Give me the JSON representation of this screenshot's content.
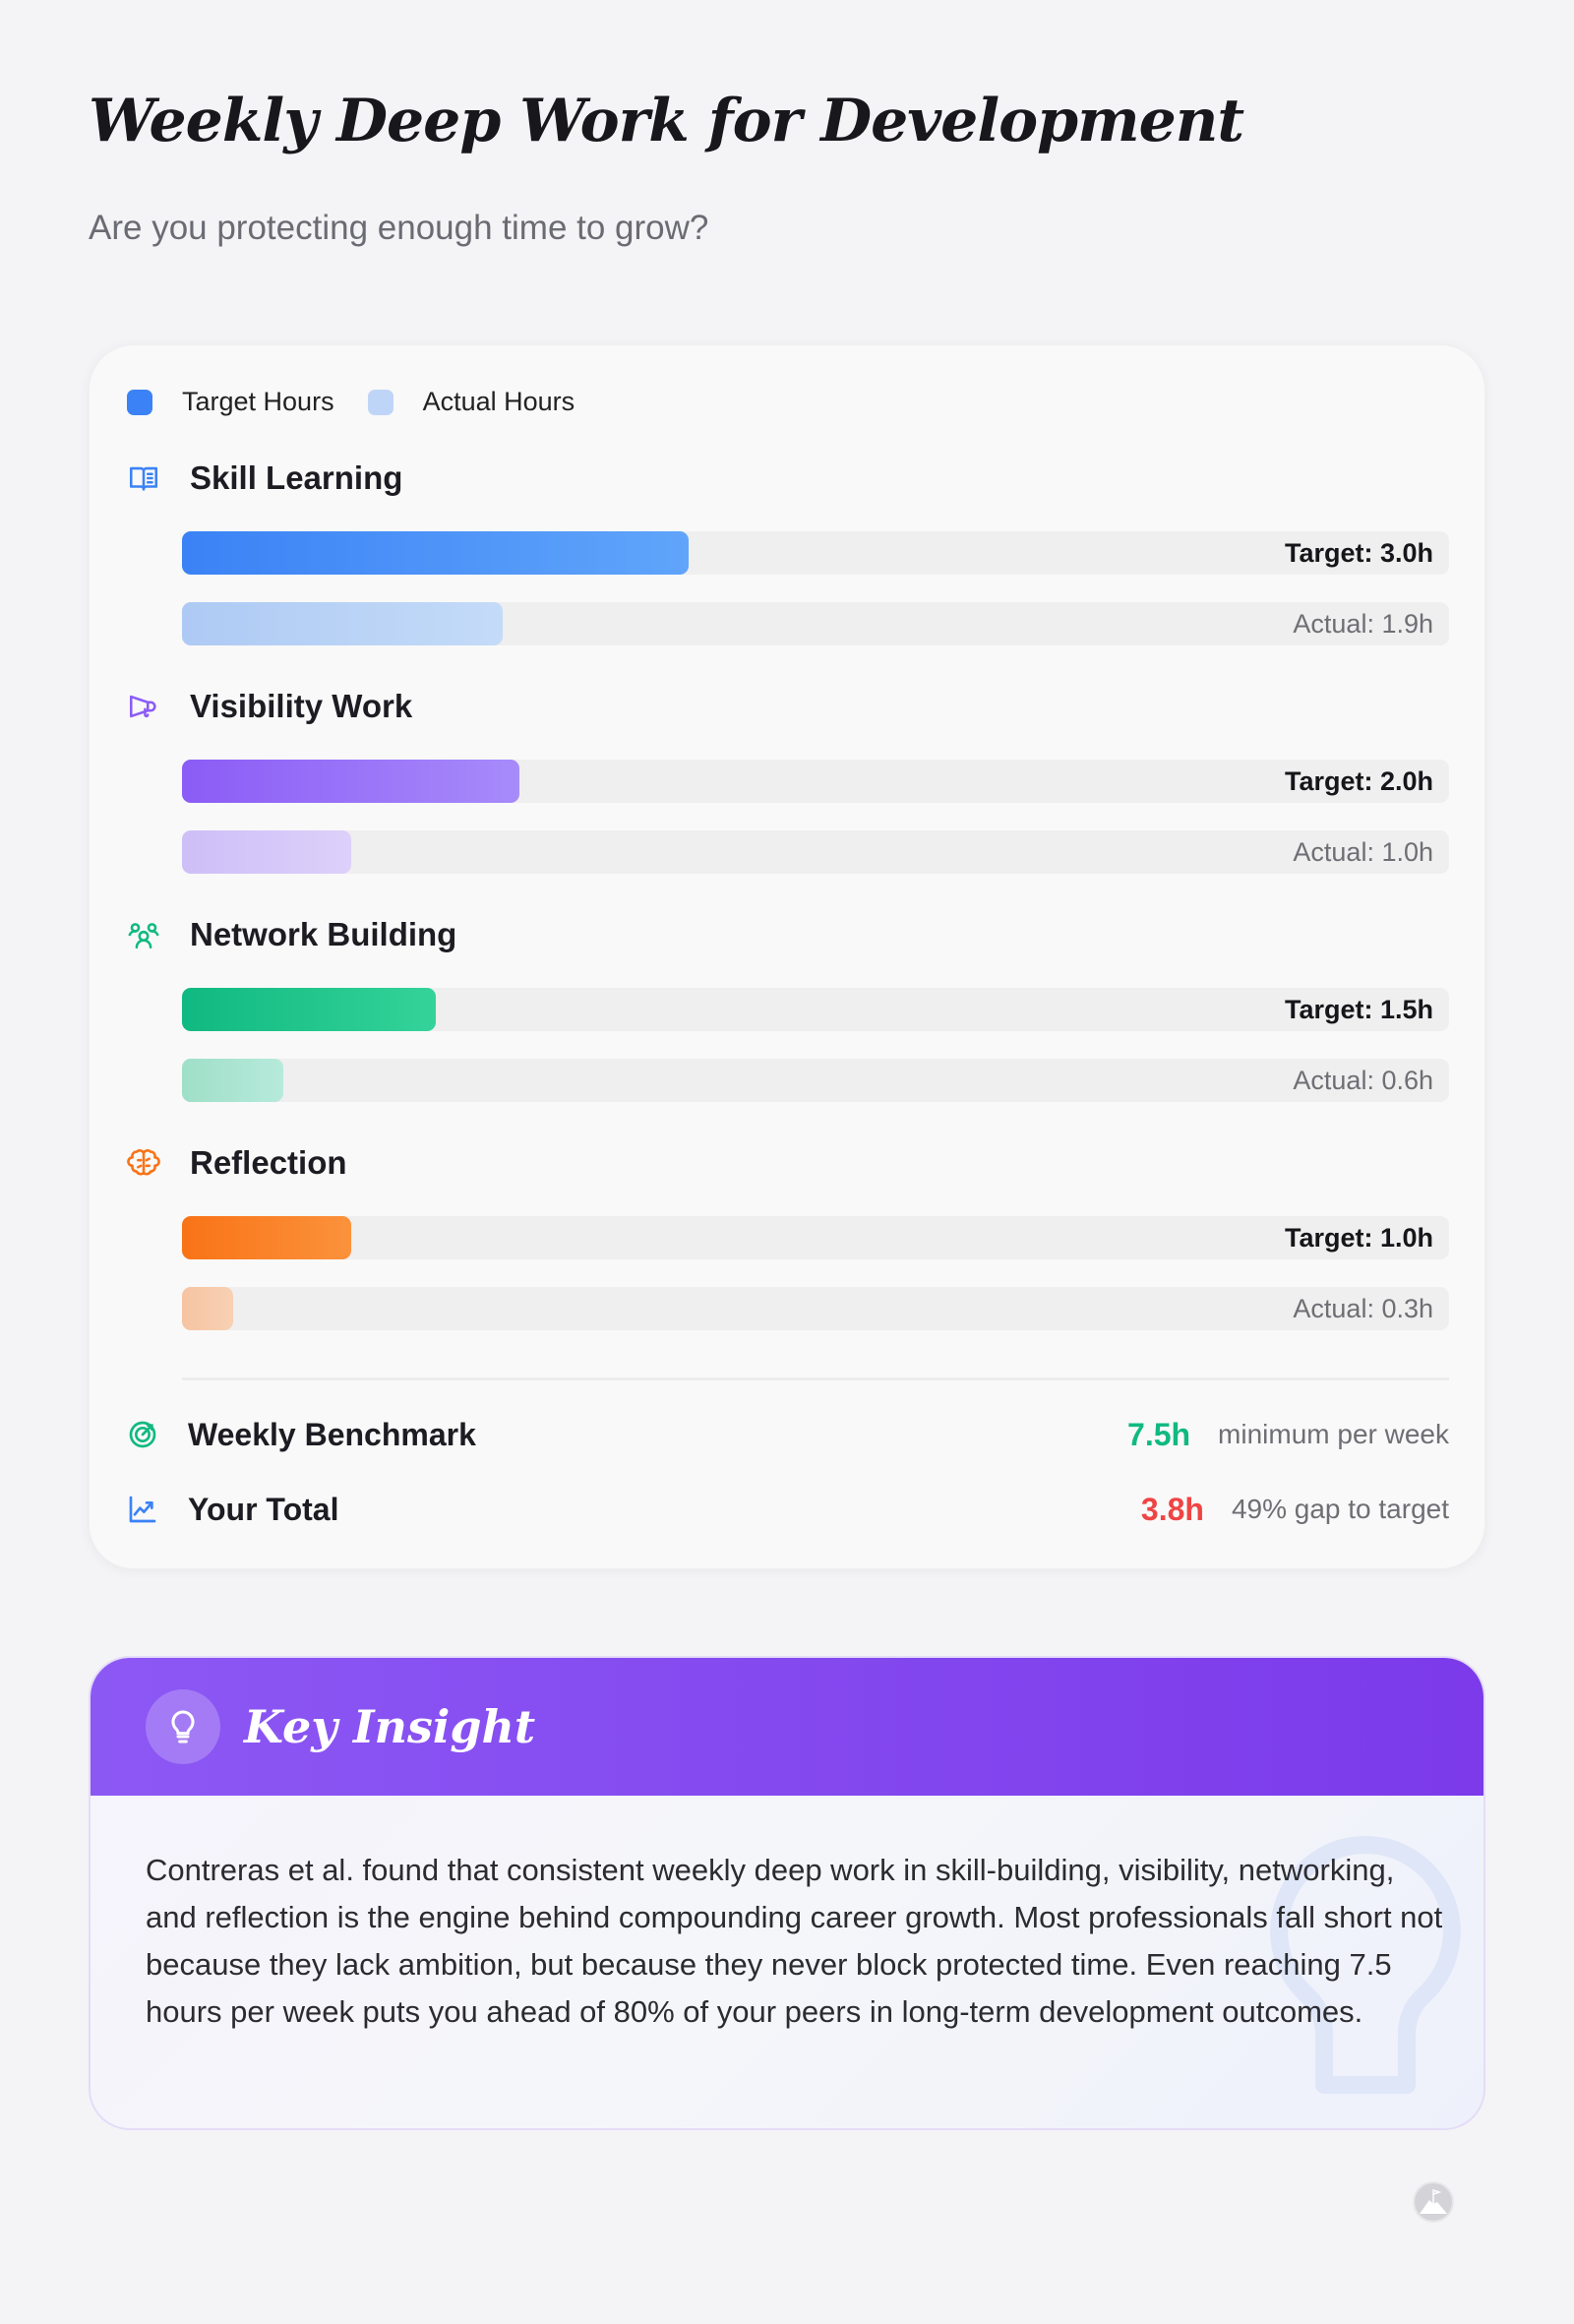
{
  "header": {
    "title": "Weekly Deep Work for Development",
    "subtitle": "Are you protecting enough time to grow?"
  },
  "legend": {
    "target_label": "Target Hours",
    "actual_label": "Actual Hours",
    "target_color": "#3b82f6",
    "actual_color": "#bfd5f8"
  },
  "chart_data": {
    "type": "bar",
    "max_hours": 7.5,
    "categories": [
      "Skill Learning",
      "Visibility Work",
      "Network Building",
      "Reflection"
    ],
    "series": [
      {
        "name": "Target Hours",
        "values": [
          3.0,
          2.0,
          1.5,
          1.0
        ]
      },
      {
        "name": "Actual Hours",
        "values": [
          1.9,
          1.0,
          0.6,
          0.3
        ]
      }
    ]
  },
  "sections": [
    {
      "title": "Skill Learning",
      "icon": "book-open-icon",
      "color": "#3b82f6",
      "target": 3.0,
      "actual": 1.9,
      "target_label": "Target: 3.0h",
      "actual_label": "Actual: 1.9h",
      "grad": [
        "#3b82f6",
        "#60a5fa"
      ],
      "agrad": [
        "#aecaf4",
        "#c4dbf8"
      ]
    },
    {
      "title": "Visibility Work",
      "icon": "megaphone-icon",
      "color": "#8b5cf6",
      "target": 2.0,
      "actual": 1.0,
      "target_label": "Target: 2.0h",
      "actual_label": "Actual: 1.0h",
      "grad": [
        "#8b5cf6",
        "#a78bfa"
      ],
      "agrad": [
        "#cdbff7",
        "#ddd0fa"
      ]
    },
    {
      "title": "Network Building",
      "icon": "users-icon",
      "color": "#10b981",
      "target": 1.5,
      "actual": 0.6,
      "target_label": "Target: 1.5h",
      "actual_label": "Actual: 0.6h",
      "grad": [
        "#10b981",
        "#34d399"
      ],
      "agrad": [
        "#9fdfc8",
        "#b6eadb"
      ]
    },
    {
      "title": "Reflection",
      "icon": "brain-icon",
      "color": "#f97316",
      "target": 1.0,
      "actual": 0.3,
      "target_label": "Target: 1.0h",
      "actual_label": "Actual: 0.3h",
      "grad": [
        "#f97316",
        "#fb923c"
      ],
      "agrad": [
        "#f6c4a2",
        "#f8d0b3"
      ]
    }
  ],
  "summary": {
    "benchmark": {
      "label": "Weekly Benchmark",
      "value": "7.5h",
      "note": "minimum per week",
      "color": "#10b981"
    },
    "total": {
      "label": "Your Total",
      "value": "3.8h",
      "note": "49% gap to target",
      "color": "#ef4444"
    }
  },
  "insight": {
    "title": "Key Insight",
    "body": "Contreras et al. found that consistent weekly deep work in skill-building, visibility, networking, and reflection is the engine behind compounding career growth. Most professionals fall short not because they lack ambition, but because they never block protected time. Even reaching 7.5 hours per week puts you ahead of 80% of your peers in long-term development outcomes.",
    "accent": "#7c3aea"
  }
}
